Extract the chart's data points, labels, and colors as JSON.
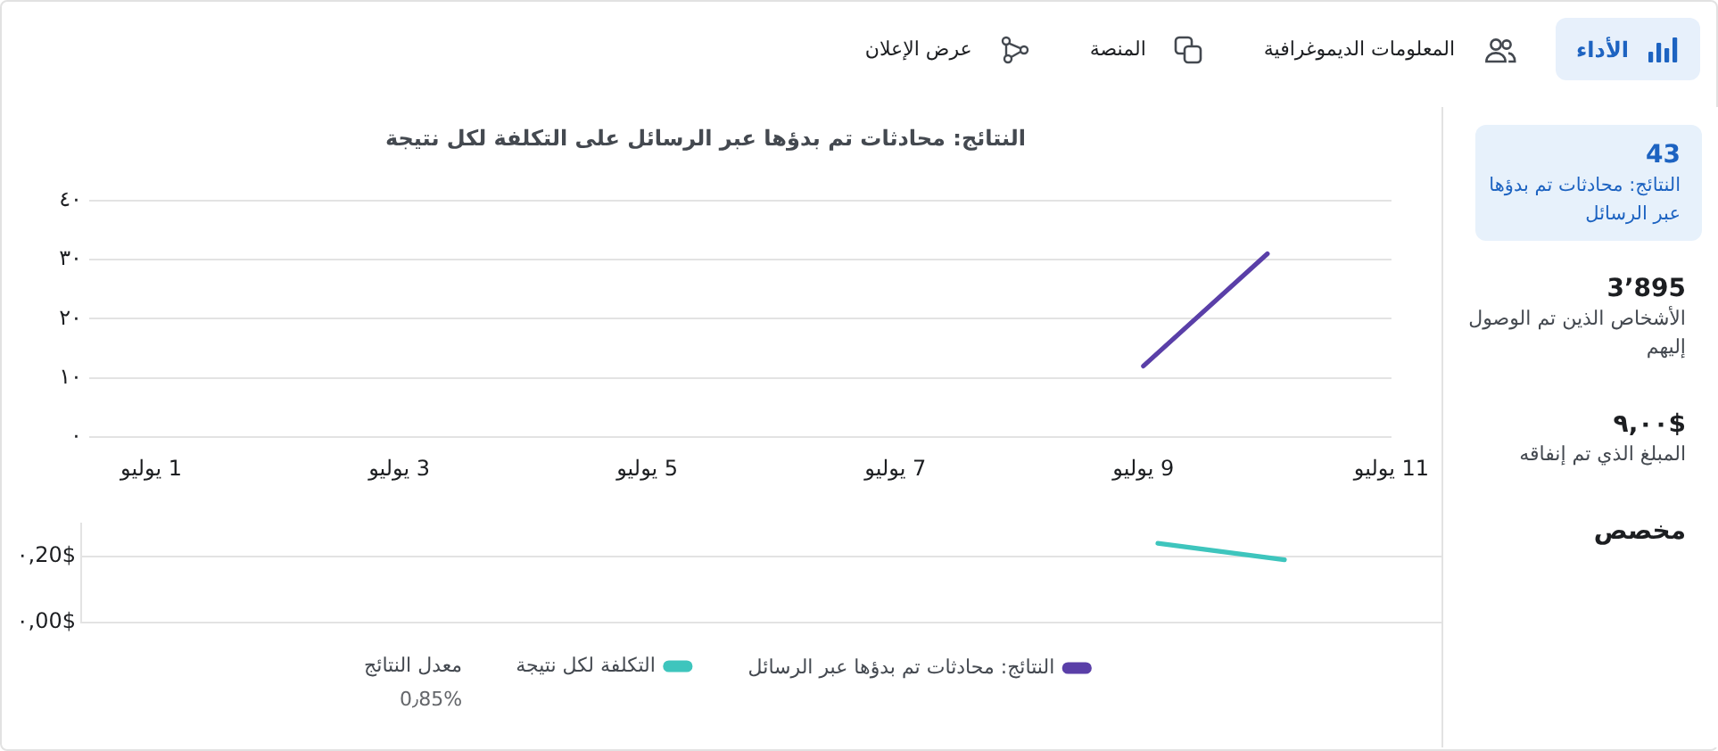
{
  "chart_data": [
    {
      "type": "other",
      "annotations": [
        "الأداء",
        "المعلومات الديموغرافية",
        "المنصة",
        "عرض الإعلان"
      ]
    },
    {
      "type": "line",
      "title": "النتائج: محادثات تم بدؤها عبر الرسائل على التكلفة لكل نتيجة",
      "x": [
        "--07-09",
        "--07-10"
      ],
      "xlim": [
        "--06-30T12:00",
        "--07-11"
      ],
      "xticks": [
        {
          "value": "--07-01",
          "label": "1 يوليو"
        },
        {
          "value": "--07-03",
          "label": "3 يوليو"
        },
        {
          "value": "--07-05",
          "label": "5 يوليو"
        },
        {
          "value": "--07-07",
          "label": "7 يوليو"
        },
        {
          "value": "--07-09",
          "label": "9 يوليو"
        },
        {
          "value": "--07-11",
          "label": "11 يوليو"
        }
      ],
      "ylim": [
        0,
        40
      ],
      "yticks": [
        {
          "value": 0,
          "label": "٠"
        },
        {
          "value": 10,
          "label": "١٠"
        },
        {
          "value": 20,
          "label": "٢٠"
        },
        {
          "value": 30,
          "label": "٣٠"
        },
        {
          "value": 40,
          "label": "٤٠"
        }
      ],
      "series": [
        {
          "name": "النتائج: محادثات تم بدؤها عبر الرسائل",
          "color": "#5a3fa8",
          "values": [
            12,
            31
          ]
        }
      ],
      "grid": "y",
      "legend": "bottom",
      "marker": "none"
    },
    {
      "type": "line",
      "categories": [
        null,
        null,
        null,
        null,
        null,
        null,
        null,
        null,
        null,
        null,
        null
      ],
      "tick_labels": "y",
      "ylim": [
        0,
        0.3
      ],
      "yticks": [
        {
          "value": 0,
          "label": "٠,00$"
        },
        {
          "value": 0.2,
          "label": "٠,20$"
        }
      ],
      "series": [
        {
          "name": "التكلفة لكل نتيجة",
          "color": "#3ec5bd",
          "values": [
            null,
            null,
            null,
            null,
            null,
            null,
            null,
            null,
            0.24,
            0.19,
            null
          ]
        }
      ],
      "grid": "y",
      "legend": "bottom",
      "marker": "none",
      "annotations": [
        "معدل النتائج",
        "0٫85%"
      ]
    },
    {
      "type": "other",
      "annotations": [
        "43",
        "النتائج: محادثات تم بدؤها عبر الرسائل",
        "3٬895",
        "الأشخاص الذين تم الوصول إليهم",
        "٩,٠٠$",
        "المبلغ الذي تم إنفاقه",
        "مخصص"
      ]
    }
  ]
}
